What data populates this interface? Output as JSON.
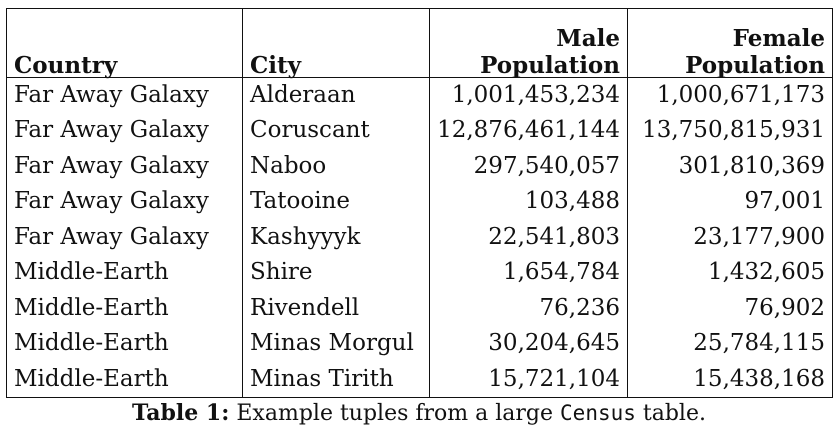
{
  "table": {
    "headers": {
      "country": "Country",
      "city": "City",
      "male_line1": "Male",
      "male_line2": "Population",
      "female_line1": "Female",
      "female_line2": "Population"
    },
    "rows": [
      {
        "country": "Far Away Galaxy",
        "city": "Alderaan",
        "male": "1,001,453,234",
        "female": "1,000,671,173"
      },
      {
        "country": "Far Away Galaxy",
        "city": "Coruscant",
        "male": "12,876,461,144",
        "female": "13,750,815,931"
      },
      {
        "country": "Far Away Galaxy",
        "city": "Naboo",
        "male": "297,540,057",
        "female": "301,810,369"
      },
      {
        "country": "Far Away Galaxy",
        "city": "Tatooine",
        "male": "103,488",
        "female": "97,001"
      },
      {
        "country": "Far Away Galaxy",
        "city": "Kashyyyk",
        "male": "22,541,803",
        "female": "23,177,900"
      },
      {
        "country": "Middle-Earth",
        "city": "Shire",
        "male": "1,654,784",
        "female": "1,432,605"
      },
      {
        "country": "Middle-Earth",
        "city": "Rivendell",
        "male": "76,236",
        "female": "76,902"
      },
      {
        "country": "Middle-Earth",
        "city": "Minas Morgul",
        "male": "30,204,645",
        "female": "25,784,115"
      },
      {
        "country": "Middle-Earth",
        "city": "Minas Tirith",
        "male": "15,721,104",
        "female": "15,438,168"
      }
    ]
  },
  "caption": {
    "label": "Table 1:",
    "text_before": "Example tuples from a large",
    "mono": "Census",
    "text_after": "table."
  }
}
